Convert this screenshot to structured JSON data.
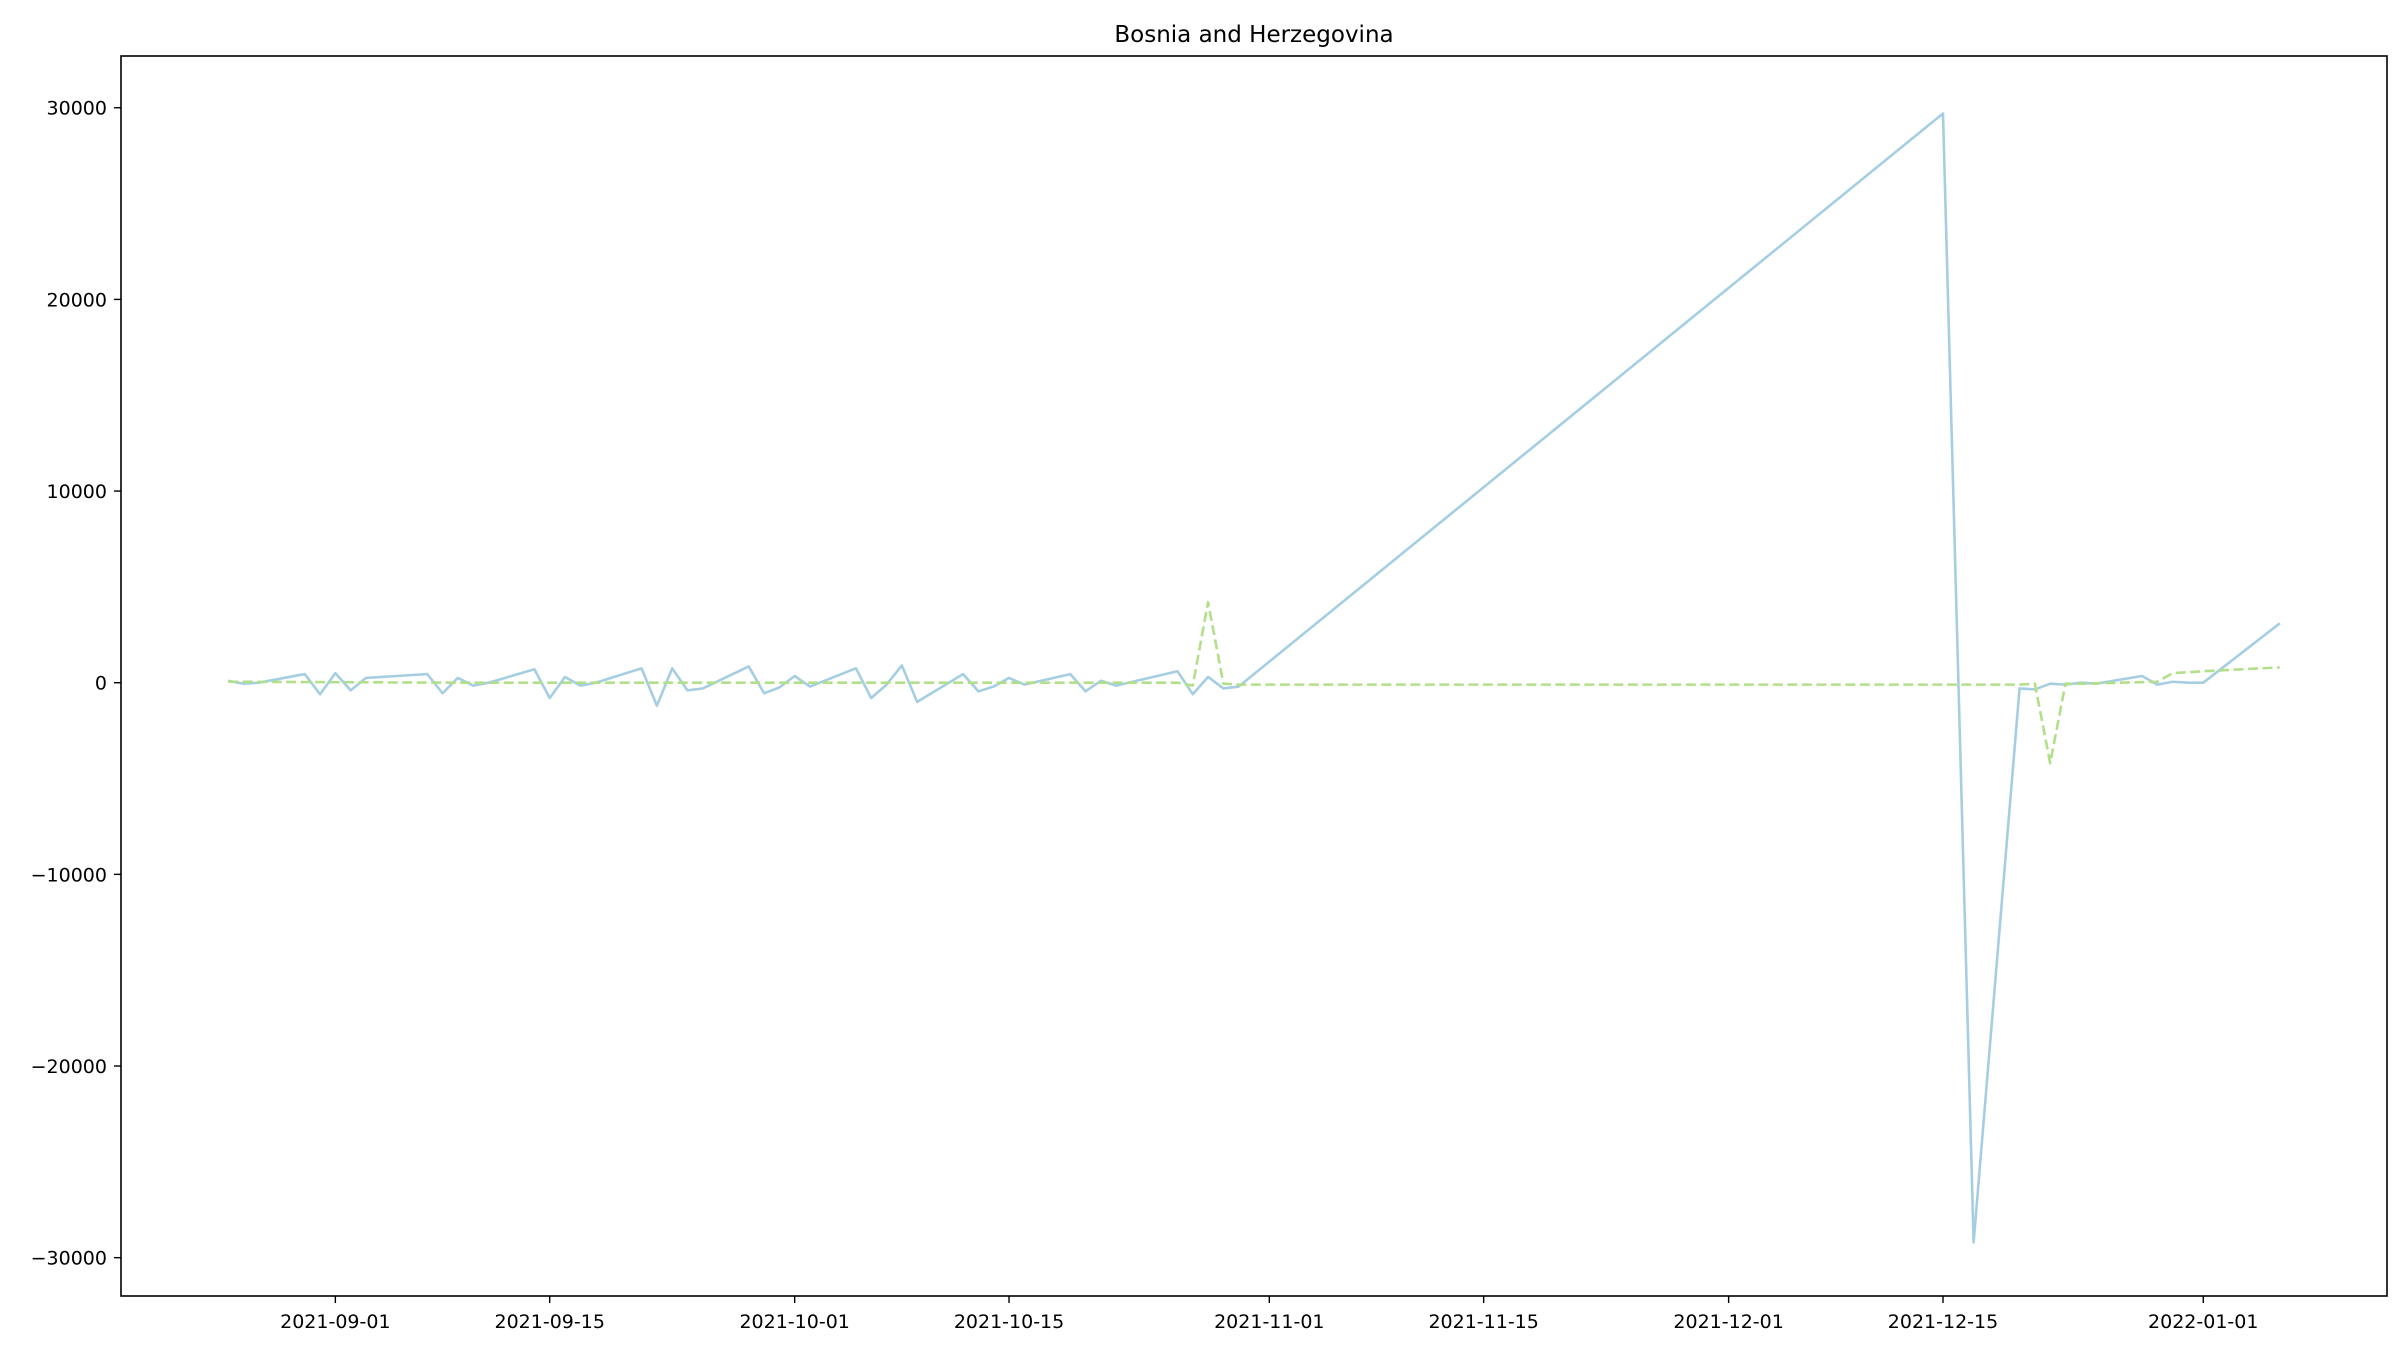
{
  "chart_data": {
    "type": "line",
    "title": "Bosnia and Herzegovina",
    "xlabel": "",
    "ylabel": "",
    "x_type": "date",
    "xlim": [
      "2021-08-18",
      "2022-01-13"
    ],
    "ylim": [
      -32000,
      32700
    ],
    "x_ticks": [
      "2021-09-01",
      "2021-09-15",
      "2021-10-01",
      "2021-10-15",
      "2021-11-01",
      "2021-11-15",
      "2021-12-01",
      "2021-12-15",
      "2022-01-01"
    ],
    "y_ticks": [
      -30000,
      -20000,
      -10000,
      0,
      10000,
      20000,
      30000
    ],
    "grid": false,
    "legend": "none",
    "series": [
      {
        "color": "#a6cee3",
        "style": "solid",
        "points": [
          [
            "2021-08-25",
            100
          ],
          [
            "2021-08-26",
            -50
          ],
          [
            "2021-08-27",
            0
          ],
          [
            "2021-08-28",
            150
          ],
          [
            "2021-08-29",
            300
          ],
          [
            "2021-08-30",
            450
          ],
          [
            "2021-08-31",
            -600
          ],
          [
            "2021-09-01",
            500
          ],
          [
            "2021-09-02",
            -400
          ],
          [
            "2021-09-03",
            250
          ],
          [
            "2021-09-05",
            350
          ],
          [
            "2021-09-07",
            450
          ],
          [
            "2021-09-08",
            -550
          ],
          [
            "2021-09-09",
            250
          ],
          [
            "2021-09-10",
            -150
          ],
          [
            "2021-09-11",
            0
          ],
          [
            "2021-09-14",
            700
          ],
          [
            "2021-09-15",
            -800
          ],
          [
            "2021-09-16",
            300
          ],
          [
            "2021-09-17",
            -150
          ],
          [
            "2021-09-18",
            0
          ],
          [
            "2021-09-21",
            750
          ],
          [
            "2021-09-22",
            -1200
          ],
          [
            "2021-09-23",
            750
          ],
          [
            "2021-09-24",
            -400
          ],
          [
            "2021-09-25",
            -300
          ],
          [
            "2021-09-28",
            850
          ],
          [
            "2021-09-29",
            -550
          ],
          [
            "2021-09-30",
            -250
          ],
          [
            "2021-10-01",
            350
          ],
          [
            "2021-10-02",
            -200
          ],
          [
            "2021-10-05",
            750
          ],
          [
            "2021-10-06",
            -800
          ],
          [
            "2021-10-07",
            -100
          ],
          [
            "2021-10-08",
            900
          ],
          [
            "2021-10-09",
            -1000
          ],
          [
            "2021-10-12",
            450
          ],
          [
            "2021-10-13",
            -450
          ],
          [
            "2021-10-14",
            -200
          ],
          [
            "2021-10-15",
            250
          ],
          [
            "2021-10-16",
            -100
          ],
          [
            "2021-10-19",
            450
          ],
          [
            "2021-10-20",
            -450
          ],
          [
            "2021-10-21",
            100
          ],
          [
            "2021-10-22",
            -150
          ],
          [
            "2021-10-26",
            600
          ],
          [
            "2021-10-27",
            -600
          ],
          [
            "2021-10-28",
            300
          ],
          [
            "2021-10-29",
            -300
          ],
          [
            "2021-10-30",
            -200
          ],
          [
            "2021-12-15",
            29700
          ],
          [
            "2021-12-17",
            -29200
          ],
          [
            "2021-12-20",
            -300
          ],
          [
            "2021-12-21",
            -350
          ],
          [
            "2021-12-22",
            -50
          ],
          [
            "2021-12-23",
            -100
          ],
          [
            "2021-12-24",
            0
          ],
          [
            "2021-12-25",
            -50
          ],
          [
            "2021-12-28",
            350
          ],
          [
            "2021-12-29",
            -100
          ],
          [
            "2021-12-30",
            50
          ],
          [
            "2021-12-31",
            0
          ],
          [
            "2022-01-01",
            0
          ],
          [
            "2022-01-06",
            3100
          ]
        ]
      },
      {
        "color": "#b2df8a",
        "style": "dashed",
        "points": [
          [
            "2021-08-25",
            50
          ],
          [
            "2021-09-10",
            0
          ],
          [
            "2021-10-26",
            0
          ],
          [
            "2021-10-27",
            -150
          ],
          [
            "2021-10-28",
            4200
          ],
          [
            "2021-10-29",
            -50
          ],
          [
            "2021-10-30",
            -100
          ],
          [
            "2021-12-15",
            -100
          ],
          [
            "2021-12-17",
            -100
          ],
          [
            "2021-12-20",
            -100
          ],
          [
            "2021-12-21",
            -50
          ],
          [
            "2021-12-22",
            -4200
          ],
          [
            "2021-12-23",
            -50
          ],
          [
            "2021-12-24",
            -50
          ],
          [
            "2021-12-29",
            50
          ],
          [
            "2021-12-30",
            500
          ],
          [
            "2021-12-31",
            550
          ],
          [
            "2022-01-01",
            600
          ],
          [
            "2022-01-06",
            800
          ]
        ]
      }
    ]
  }
}
